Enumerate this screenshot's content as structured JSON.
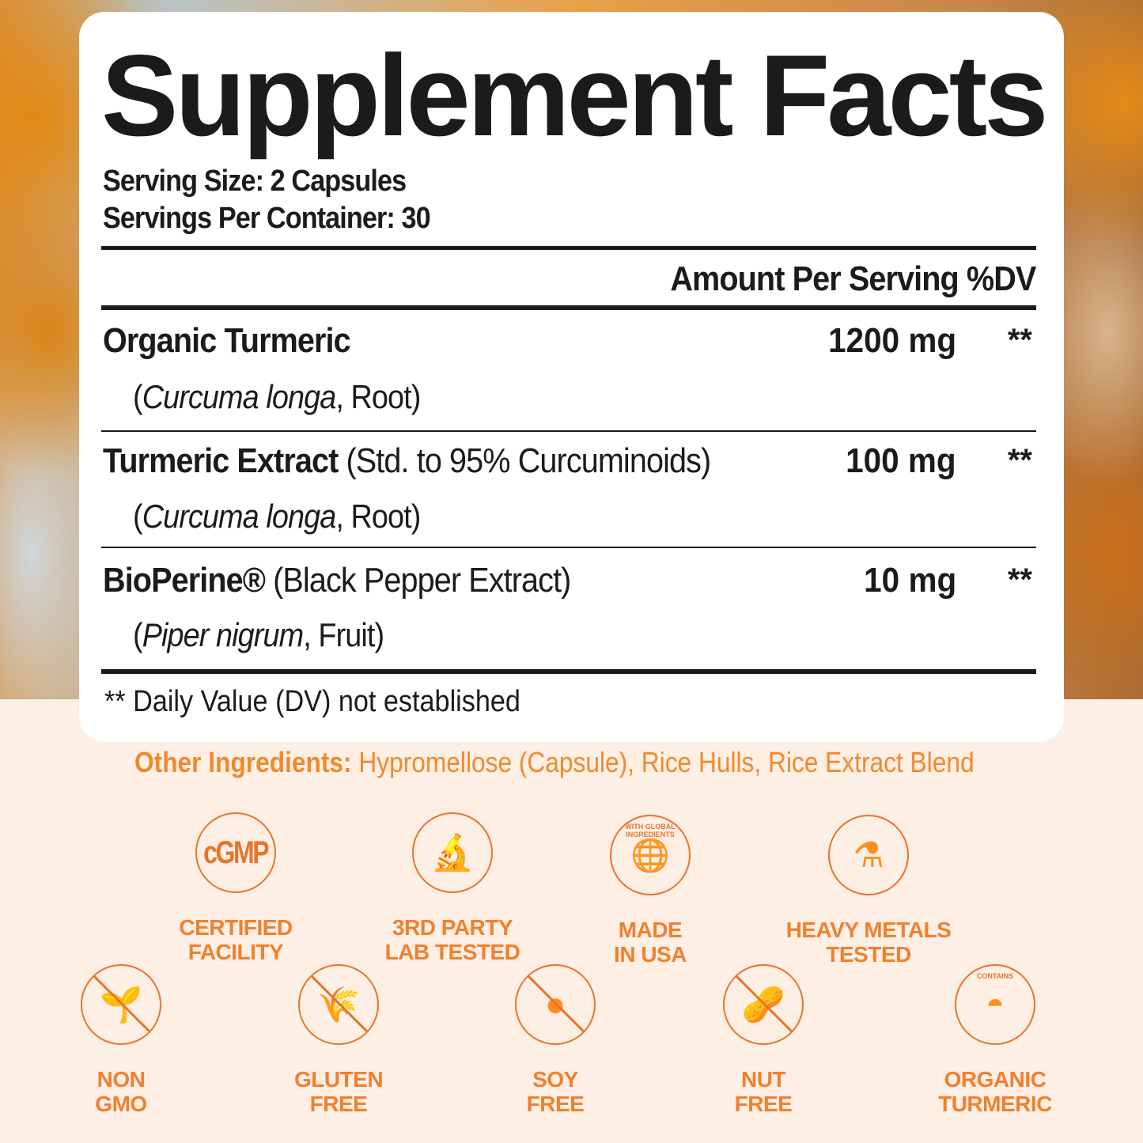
{
  "title": "Supplement Facts",
  "serving_size": "Serving Size: 2 Capsules",
  "servings_per_container": "Servings Per Container: 30",
  "header": "Amount Per Serving %DV",
  "ingredients": [
    {
      "name": "Organic Turmeric",
      "desc": "",
      "sub_italic": "Curcuma longa",
      "sub_rest": ", Root)",
      "amount": "1200 mg",
      "dv": "**"
    },
    {
      "name": "Turmeric Extract",
      "desc": " (Std. to 95% Curcuminoids)",
      "sub_italic": "Curcuma longa",
      "sub_rest": ", Root)",
      "amount": "100 mg",
      "dv": "**"
    },
    {
      "name": "BioPerine®",
      "desc": " (Black Pepper Extract)",
      "sub_italic": "Piper nigrum",
      "sub_rest": ", Fruit)",
      "amount": "10 mg",
      "dv": "**"
    }
  ],
  "footnote": "** Daily Value (DV) not established",
  "other_label": "Other Ingredients:",
  "other_value": " Hypromellose (Capsule), Rice Hulls, Rice Extract Blend",
  "accent_color": "#f0802f",
  "badges": [
    {
      "icon": "cgmp-icon",
      "icon_text": "cGMP",
      "l1": "CERTIFIED",
      "l2": "FACILITY"
    },
    {
      "icon": "microscope-icon",
      "l1": "3RD PARTY",
      "l2": "LAB TESTED"
    },
    {
      "icon": "usa-globe-icon",
      "icon_text": "WITH GLOBAL INGREDIENTS",
      "l1": "MADE",
      "l2": "IN USA"
    },
    {
      "icon": "flask-check-icon",
      "l1": "HEAVY METALS",
      "l2": "TESTED"
    },
    {
      "icon": "no-gmo-icon",
      "l1": "NON",
      "l2": "GMO"
    },
    {
      "icon": "no-gluten-icon",
      "l1": "GLUTEN",
      "l2": "FREE"
    },
    {
      "icon": "no-soy-icon",
      "l1": "SOY",
      "l2": "FREE"
    },
    {
      "icon": "no-nut-icon",
      "l1": "NUT",
      "l2": "FREE"
    },
    {
      "icon": "contains-turmeric-icon",
      "icon_text": "CONTAINS",
      "l1": "ORGANIC",
      "l2": "TURMERIC"
    }
  ]
}
